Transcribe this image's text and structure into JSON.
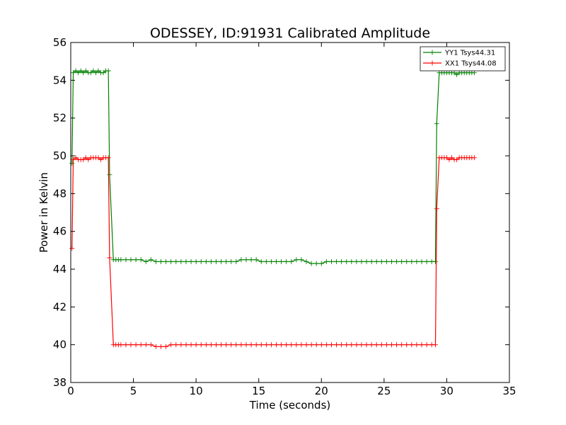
{
  "chart_data": {
    "type": "line",
    "title": "ODESSEY, ID:91931 Calibrated Amplitude",
    "xlabel": "Time (seconds)",
    "ylabel": "Power in Kelvin",
    "xlim": [
      0,
      35
    ],
    "ylim": [
      38,
      56
    ],
    "xticks": [
      "0",
      "5",
      "10",
      "15",
      "20",
      "25",
      "30",
      "35"
    ],
    "yticks": [
      "38",
      "40",
      "42",
      "44",
      "46",
      "48",
      "50",
      "52",
      "54",
      "56"
    ],
    "grid": false,
    "legend_position": "top-right",
    "series": [
      {
        "name": "YY1 Tsys44.31",
        "color": "#008000",
        "marker": "plus",
        "x": [
          0.1,
          0.2,
          0.4,
          0.6,
          0.8,
          1.0,
          1.2,
          1.4,
          1.6,
          1.8,
          2.0,
          2.2,
          2.4,
          2.6,
          2.8,
          3.0,
          3.1,
          3.4,
          3.6,
          3.8,
          4.0,
          4.4,
          4.8,
          5.2,
          5.6,
          6.0,
          6.4,
          6.8,
          7.2,
          7.6,
          8.0,
          8.4,
          8.8,
          9.2,
          9.6,
          10.0,
          10.4,
          10.8,
          11.2,
          11.6,
          12.0,
          12.4,
          12.8,
          13.2,
          13.6,
          14.0,
          14.4,
          14.8,
          15.2,
          15.6,
          16.0,
          16.4,
          16.8,
          17.2,
          17.6,
          18.0,
          18.4,
          18.8,
          19.2,
          19.6,
          20.0,
          20.4,
          20.8,
          21.2,
          21.6,
          22.0,
          22.4,
          22.8,
          23.2,
          23.6,
          24.0,
          24.4,
          24.8,
          25.2,
          25.6,
          26.0,
          26.4,
          26.8,
          27.2,
          27.6,
          28.0,
          28.4,
          28.8,
          29.1,
          29.2,
          29.4,
          29.6,
          29.8,
          30.0,
          30.2,
          30.4,
          30.6,
          30.8,
          31.0,
          31.2,
          31.4,
          31.6,
          31.8,
          32.0,
          32.2
        ],
        "y": [
          49.6,
          54.4,
          54.5,
          54.4,
          54.5,
          54.4,
          54.5,
          54.4,
          54.4,
          54.5,
          54.4,
          54.5,
          54.4,
          54.4,
          54.5,
          54.5,
          49.0,
          44.5,
          44.5,
          44.5,
          44.5,
          44.5,
          44.5,
          44.5,
          44.5,
          44.4,
          44.5,
          44.4,
          44.4,
          44.4,
          44.4,
          44.4,
          44.4,
          44.4,
          44.4,
          44.4,
          44.4,
          44.4,
          44.4,
          44.4,
          44.4,
          44.4,
          44.4,
          44.4,
          44.5,
          44.5,
          44.5,
          44.5,
          44.4,
          44.4,
          44.4,
          44.4,
          44.4,
          44.4,
          44.4,
          44.5,
          44.5,
          44.4,
          44.3,
          44.3,
          44.3,
          44.4,
          44.4,
          44.4,
          44.4,
          44.4,
          44.4,
          44.4,
          44.4,
          44.4,
          44.4,
          44.4,
          44.4,
          44.4,
          44.4,
          44.4,
          44.4,
          44.4,
          44.4,
          44.4,
          44.4,
          44.4,
          44.4,
          44.4,
          51.7,
          54.4,
          54.4,
          54.4,
          54.4,
          54.4,
          54.4,
          54.4,
          54.3,
          54.4,
          54.4,
          54.4,
          54.4,
          54.4,
          54.4,
          54.4
        ]
      },
      {
        "name": "XX1 Tsys44.08",
        "color": "#ff0000",
        "marker": "plus",
        "x": [
          0.1,
          0.2,
          0.4,
          0.6,
          0.8,
          1.0,
          1.2,
          1.4,
          1.6,
          1.8,
          2.0,
          2.2,
          2.4,
          2.6,
          2.8,
          3.0,
          3.1,
          3.4,
          3.6,
          3.8,
          4.0,
          4.4,
          4.8,
          5.2,
          5.6,
          6.0,
          6.4,
          6.8,
          7.2,
          7.6,
          8.0,
          8.4,
          8.8,
          9.2,
          9.6,
          10.0,
          10.4,
          10.8,
          11.2,
          11.6,
          12.0,
          12.4,
          12.8,
          13.2,
          13.6,
          14.0,
          14.4,
          14.8,
          15.2,
          15.6,
          16.0,
          16.4,
          16.8,
          17.2,
          17.6,
          18.0,
          18.4,
          18.8,
          19.2,
          19.6,
          20.0,
          20.4,
          20.8,
          21.2,
          21.6,
          22.0,
          22.4,
          22.8,
          23.2,
          23.6,
          24.0,
          24.4,
          24.8,
          25.2,
          25.6,
          26.0,
          26.4,
          26.8,
          27.2,
          27.6,
          28.0,
          28.4,
          28.8,
          29.1,
          29.2,
          29.4,
          29.6,
          29.8,
          30.0,
          30.2,
          30.4,
          30.6,
          30.8,
          31.0,
          31.2,
          31.4,
          31.6,
          31.8,
          32.0,
          32.2
        ],
        "y": [
          45.1,
          49.8,
          49.9,
          49.8,
          49.8,
          49.8,
          49.9,
          49.8,
          49.9,
          49.9,
          49.9,
          49.9,
          49.8,
          49.9,
          49.9,
          49.9,
          44.6,
          40.0,
          40.0,
          40.0,
          40.0,
          40.0,
          40.0,
          40.0,
          40.0,
          40.0,
          40.0,
          39.9,
          39.9,
          39.9,
          40.0,
          40.0,
          40.0,
          40.0,
          40.0,
          40.0,
          40.0,
          40.0,
          40.0,
          40.0,
          40.0,
          40.0,
          40.0,
          40.0,
          40.0,
          40.0,
          40.0,
          40.0,
          40.0,
          40.0,
          40.0,
          40.0,
          40.0,
          40.0,
          40.0,
          40.0,
          40.0,
          40.0,
          40.0,
          40.0,
          40.0,
          40.0,
          40.0,
          40.0,
          40.0,
          40.0,
          40.0,
          40.0,
          40.0,
          40.0,
          40.0,
          40.0,
          40.0,
          40.0,
          40.0,
          40.0,
          40.0,
          40.0,
          40.0,
          40.0,
          40.0,
          40.0,
          40.0,
          40.0,
          47.2,
          49.9,
          49.9,
          49.9,
          49.9,
          49.8,
          49.9,
          49.8,
          49.8,
          49.9,
          49.9,
          49.9,
          49.9,
          49.9,
          49.9,
          49.9
        ]
      }
    ]
  }
}
